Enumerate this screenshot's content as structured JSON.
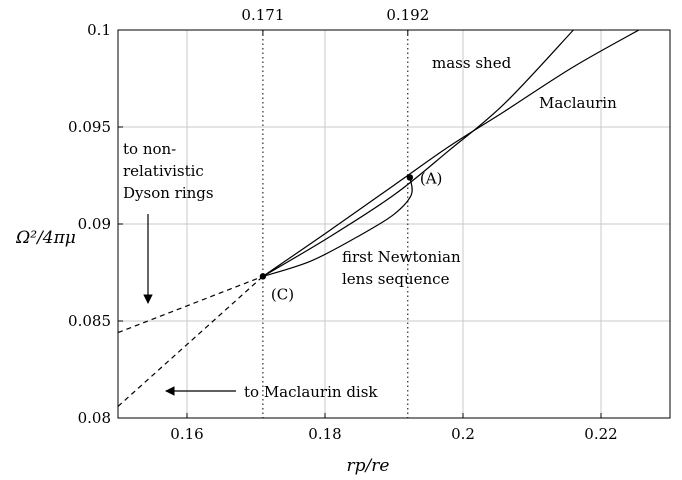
{
  "chart_data": {
    "type": "line",
    "xlabel": "rp/re",
    "ylabel": "Ω²/4πμ",
    "xlim": [
      0.15,
      0.23
    ],
    "ylim": [
      0.08,
      0.1
    ],
    "x_ticks": [
      {
        "value": 0.16,
        "label": "0.16"
      },
      {
        "value": 0.18,
        "label": "0.18"
      },
      {
        "value": 0.2,
        "label": "0.2"
      },
      {
        "value": 0.22,
        "label": "0.22"
      }
    ],
    "y_ticks": [
      {
        "value": 0.08,
        "label": "0.08"
      },
      {
        "value": 0.085,
        "label": "0.085"
      },
      {
        "value": 0.09,
        "label": "0.09"
      },
      {
        "value": 0.095,
        "label": "0.095"
      },
      {
        "value": 0.1,
        "label": "0.1"
      }
    ],
    "top_ticks": [
      {
        "value": 0.171,
        "label": "0.171"
      },
      {
        "value": 0.192,
        "label": "0.192"
      }
    ],
    "grid": true,
    "series": [
      {
        "name": "mass shed",
        "style": "solid",
        "x": [
          0.171,
          0.1805,
          0.19,
          0.198,
          0.206,
          0.216
        ],
        "y": [
          0.0873,
          0.0893,
          0.0915,
          0.0938,
          0.0962,
          0.1
        ]
      },
      {
        "name": "Maclaurin",
        "style": "solid",
        "x": [
          0.171,
          0.18,
          0.19,
          0.198,
          0.206,
          0.216,
          0.2255
        ],
        "y": [
          0.0873,
          0.0895,
          0.092,
          0.094,
          0.0958,
          0.0981,
          0.1
        ]
      },
      {
        "name": "first Newtonian lens sequence",
        "style": "solid",
        "x": [
          0.171,
          0.178,
          0.185,
          0.19,
          0.1925,
          0.1923
        ],
        "y": [
          0.0873,
          0.0881,
          0.0894,
          0.0905,
          0.0915,
          0.0924
        ]
      },
      {
        "name": "to non-relativistic Dyson rings",
        "style": "dashed",
        "x": [
          0.15,
          0.171
        ],
        "y": [
          0.0844,
          0.0873
        ]
      },
      {
        "name": "to Maclaurin disk",
        "style": "dashed",
        "x": [
          0.15,
          0.171
        ],
        "y": [
          0.0806,
          0.0873
        ]
      }
    ],
    "points": [
      {
        "label": "(A)",
        "x": 0.1923,
        "y": 0.0924
      },
      {
        "label": "(C)",
        "x": 0.171,
        "y": 0.0873
      }
    ],
    "annotations": {
      "mass_shed": "mass shed",
      "maclaurin": "Maclaurin",
      "dyson_line1": "to non-",
      "dyson_line2": "relativistic",
      "dyson_line3": "Dyson rings",
      "lens_line1": "first Newtonian",
      "lens_line2": "lens sequence",
      "maclaurin_disk": "to Maclaurin disk"
    }
  }
}
